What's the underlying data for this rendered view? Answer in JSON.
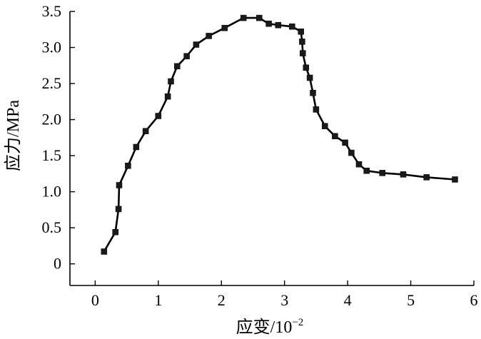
{
  "chart_data": {
    "type": "line",
    "title": "",
    "xlabel": "应变/10",
    "xlabel_exponent": "−2",
    "ylabel": "应力/MPa",
    "xlim": [
      -0.4,
      6
    ],
    "ylim": [
      -0.3,
      3.5
    ],
    "xticks": [
      0,
      1,
      2,
      3,
      4,
      5,
      6
    ],
    "yticks": [
      0,
      0.5,
      1.0,
      1.5,
      2.0,
      2.5,
      3.0,
      3.5
    ],
    "xtick_labels": [
      "0",
      "1",
      "2",
      "3",
      "4",
      "5",
      "6"
    ],
    "ytick_labels": [
      "0",
      "0.5",
      "1.0",
      "1.5",
      "2.0",
      "2.5",
      "3.0",
      "3.5"
    ],
    "grid": false,
    "legend": "none",
    "series": [
      {
        "marker": "square",
        "color": "#000000",
        "x": [
          0.14,
          0.32,
          0.37,
          0.38,
          0.52,
          0.65,
          0.8,
          1.0,
          1.15,
          1.2,
          1.3,
          1.45,
          1.6,
          1.8,
          2.05,
          2.35,
          2.6,
          2.75,
          2.9,
          3.12,
          3.26,
          3.28,
          3.29,
          3.34,
          3.4,
          3.45,
          3.5,
          3.64,
          3.8,
          3.96,
          4.06,
          4.18,
          4.3,
          4.55,
          4.88,
          5.25,
          5.7
        ],
        "y": [
          0.17,
          0.44,
          0.76,
          1.09,
          1.36,
          1.62,
          1.84,
          2.05,
          2.32,
          2.53,
          2.74,
          2.88,
          3.04,
          3.16,
          3.27,
          3.41,
          3.41,
          3.33,
          3.31,
          3.29,
          3.22,
          3.08,
          2.92,
          2.72,
          2.58,
          2.37,
          2.14,
          1.91,
          1.77,
          1.68,
          1.54,
          1.38,
          1.29,
          1.26,
          1.24,
          1.2,
          1.17
        ]
      }
    ]
  }
}
